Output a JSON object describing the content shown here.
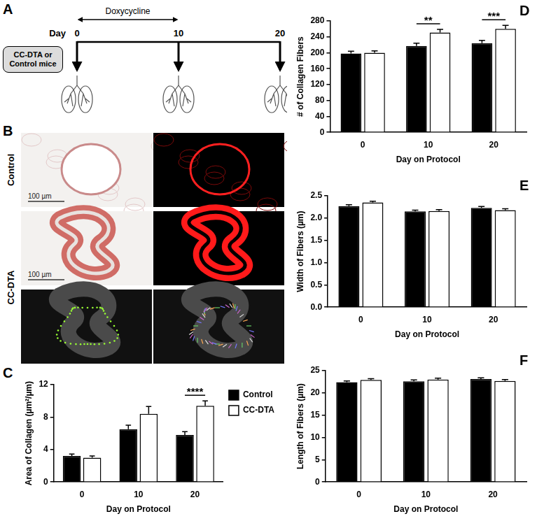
{
  "diagram": {
    "panel": "A",
    "arrow_label": "Doxycycline",
    "arrow_days": [
      0,
      10
    ],
    "axis_label": "Day",
    "days": [
      0,
      10,
      20
    ],
    "box": "CC-DTA or Control mice"
  },
  "images": {
    "panel": "B",
    "rows": [
      "Control",
      "CC-DTA"
    ],
    "scale_bar": "100 µm"
  },
  "chart_data": [
    {
      "panel": "C",
      "type": "bar",
      "categories": [
        "0",
        "10",
        "20"
      ],
      "x_label": "Day on Protocol",
      "y_label": "Area of Collagen (µm²/µm)",
      "ylim": [
        0,
        12
      ],
      "yticks": [
        0,
        4,
        8,
        12
      ],
      "grid": false,
      "legend": "right",
      "series": [
        {
          "name": "Control",
          "color": "#000000",
          "values": [
            3.2,
            6.5,
            5.8
          ],
          "errors": [
            0.25,
            0.5,
            0.4
          ]
        },
        {
          "name": "CC-DTA",
          "color": "#ffffff",
          "values": [
            3.0,
            8.4,
            9.4
          ],
          "errors": [
            0.2,
            0.9,
            0.6
          ]
        }
      ],
      "annotations": [
        {
          "category": "20",
          "label": "****"
        }
      ]
    },
    {
      "panel": "D",
      "type": "bar",
      "categories": [
        "0",
        "10",
        "20"
      ],
      "x_label": "Day on Protocol",
      "y_label": "# of Collagen Fibers",
      "ylim": [
        0,
        280
      ],
      "yticks": [
        0,
        40,
        80,
        120,
        160,
        200,
        240,
        280
      ],
      "grid": false,
      "series": [
        {
          "color": "#000000",
          "values": [
            198,
            217,
            224
          ],
          "errors": [
            6,
            7,
            7
          ]
        },
        {
          "color": "#ffffff",
          "values": [
            200,
            251,
            260
          ],
          "errors": [
            5,
            8,
            9
          ]
        }
      ],
      "annotations": [
        {
          "category": "10",
          "label": "**"
        },
        {
          "category": "20",
          "label": "***"
        }
      ]
    },
    {
      "panel": "E",
      "type": "bar",
      "categories": [
        "0",
        "10",
        "20"
      ],
      "x_label": "Day on Protocol",
      "y_label": "Width of Fibers (µm)",
      "ylim": [
        0,
        2.5
      ],
      "yticks": [
        {
          "value": 0,
          "label": "0.0"
        },
        {
          "value": 0.5,
          "label": "0.5"
        },
        {
          "value": 1,
          "label": "1.0"
        },
        {
          "value": 1.5,
          "label": "1.5"
        },
        {
          "value": 2,
          "label": "2.0"
        },
        {
          "value": 2.5,
          "label": "2.5"
        }
      ],
      "grid": false,
      "series": [
        {
          "color": "#000000",
          "values": [
            2.27,
            2.15,
            2.23
          ],
          "errors": [
            0.03,
            0.03,
            0.03
          ]
        },
        {
          "color": "#ffffff",
          "values": [
            2.35,
            2.16,
            2.18
          ],
          "errors": [
            0.03,
            0.03,
            0.03
          ]
        }
      ]
    },
    {
      "panel": "F",
      "type": "bar",
      "categories": [
        "0",
        "10",
        "20"
      ],
      "x_label": "Day on Protocol",
      "y_label": "Length of Fibers (µm)",
      "ylim": [
        0,
        25
      ],
      "yticks": [
        0,
        5,
        10,
        15,
        20,
        25
      ],
      "grid": false,
      "series": [
        {
          "color": "#000000",
          "values": [
            22.4,
            22.6,
            23.1
          ],
          "errors": [
            0.3,
            0.3,
            0.3
          ]
        },
        {
          "color": "#ffffff",
          "values": [
            22.9,
            23.0,
            22.7
          ],
          "errors": [
            0.3,
            0.3,
            0.3
          ]
        }
      ]
    }
  ]
}
